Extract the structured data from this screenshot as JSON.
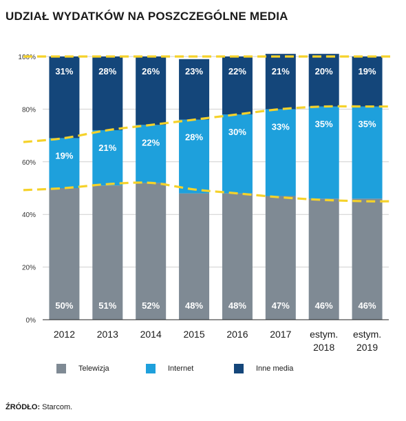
{
  "title": "UDZIAŁ WYDATKÓW NA POSZCZEGÓLNE MEDIA",
  "source_label": "ŹRÓDŁO:",
  "source_text": " Starcom.",
  "colors": {
    "telewizja": "#7f8a94",
    "internet": "#1ea0dc",
    "inne_media": "#14467a",
    "trend": "#f5d22a",
    "axis": "#222222",
    "grid": "#cfcfcf"
  },
  "chart_data": {
    "type": "bar",
    "stacked": true,
    "categories": [
      [
        "2012"
      ],
      [
        "2013"
      ],
      [
        "2014"
      ],
      [
        "2015"
      ],
      [
        "2016"
      ],
      [
        "2017"
      ],
      [
        "estym.",
        "2018"
      ],
      [
        "estym.",
        "2019"
      ]
    ],
    "series": [
      {
        "name": "Telewizja",
        "key": "telewizja",
        "values": [
          50,
          51,
          52,
          48,
          48,
          47,
          46,
          46
        ]
      },
      {
        "name": "Internet",
        "key": "internet",
        "values": [
          19,
          21,
          22,
          28,
          30,
          33,
          35,
          35
        ]
      },
      {
        "name": "Inne media",
        "key": "inne_media",
        "values": [
          31,
          28,
          26,
          23,
          22,
          21,
          20,
          19
        ]
      }
    ],
    "value_labels": {
      "telewizja": [
        "50%",
        "51%",
        "52%",
        "48%",
        "48%",
        "47%",
        "46%",
        "46%"
      ],
      "internet": [
        "19%",
        "21%",
        "22%",
        "28%",
        "30%",
        "33%",
        "35%",
        "35%"
      ],
      "inne_media": [
        "31%",
        "28%",
        "26%",
        "23%",
        "22%",
        "21%",
        "20%",
        "19%"
      ]
    },
    "trend_lines": [
      {
        "name": "100% line",
        "values": [
          100,
          100,
          100,
          100,
          100,
          100,
          100,
          100
        ]
      },
      {
        "name": "telewizja+internet boundary",
        "values": [
          69,
          72,
          74,
          76,
          78,
          80,
          81,
          81
        ]
      },
      {
        "name": "telewizja boundary",
        "values": [
          50,
          51.5,
          52,
          49.5,
          48,
          46.5,
          45.5,
          45
        ]
      }
    ],
    "ylim": [
      0,
      100
    ],
    "yticks": [
      0,
      20,
      40,
      60,
      80,
      100
    ],
    "ytick_labels": [
      "0%",
      "20%",
      "40%",
      "60%",
      "80%",
      "100%"
    ],
    "legend_position": "bottom",
    "grid": true
  }
}
